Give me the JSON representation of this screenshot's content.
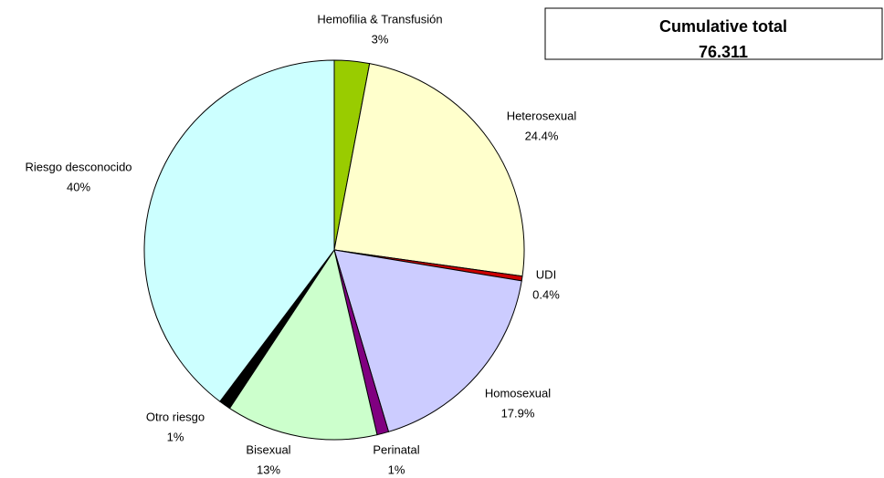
{
  "chart_data": {
    "type": "pie",
    "categories": [
      "Hemofilia & Transfusión",
      "Heterosexual",
      "UDI",
      "Homosexual",
      "Perinatal",
      "Bisexual",
      "Otro riesgo",
      "Riesgo desconocido"
    ],
    "values": [
      3,
      24.4,
      0.4,
      17.9,
      1,
      13,
      1,
      40
    ],
    "value_labels": [
      "3%",
      "24.4%",
      "0.4%",
      "17.9%",
      "1%",
      "13%",
      "1%",
      "40%"
    ],
    "colors": [
      "#99cc00",
      "#ffffcc",
      "#cc0000",
      "#ccccff",
      "#800080",
      "#ccffcc",
      "#000000",
      "#ccffff"
    ],
    "annotations": [
      "Cumulative total",
      "76.311"
    ]
  }
}
